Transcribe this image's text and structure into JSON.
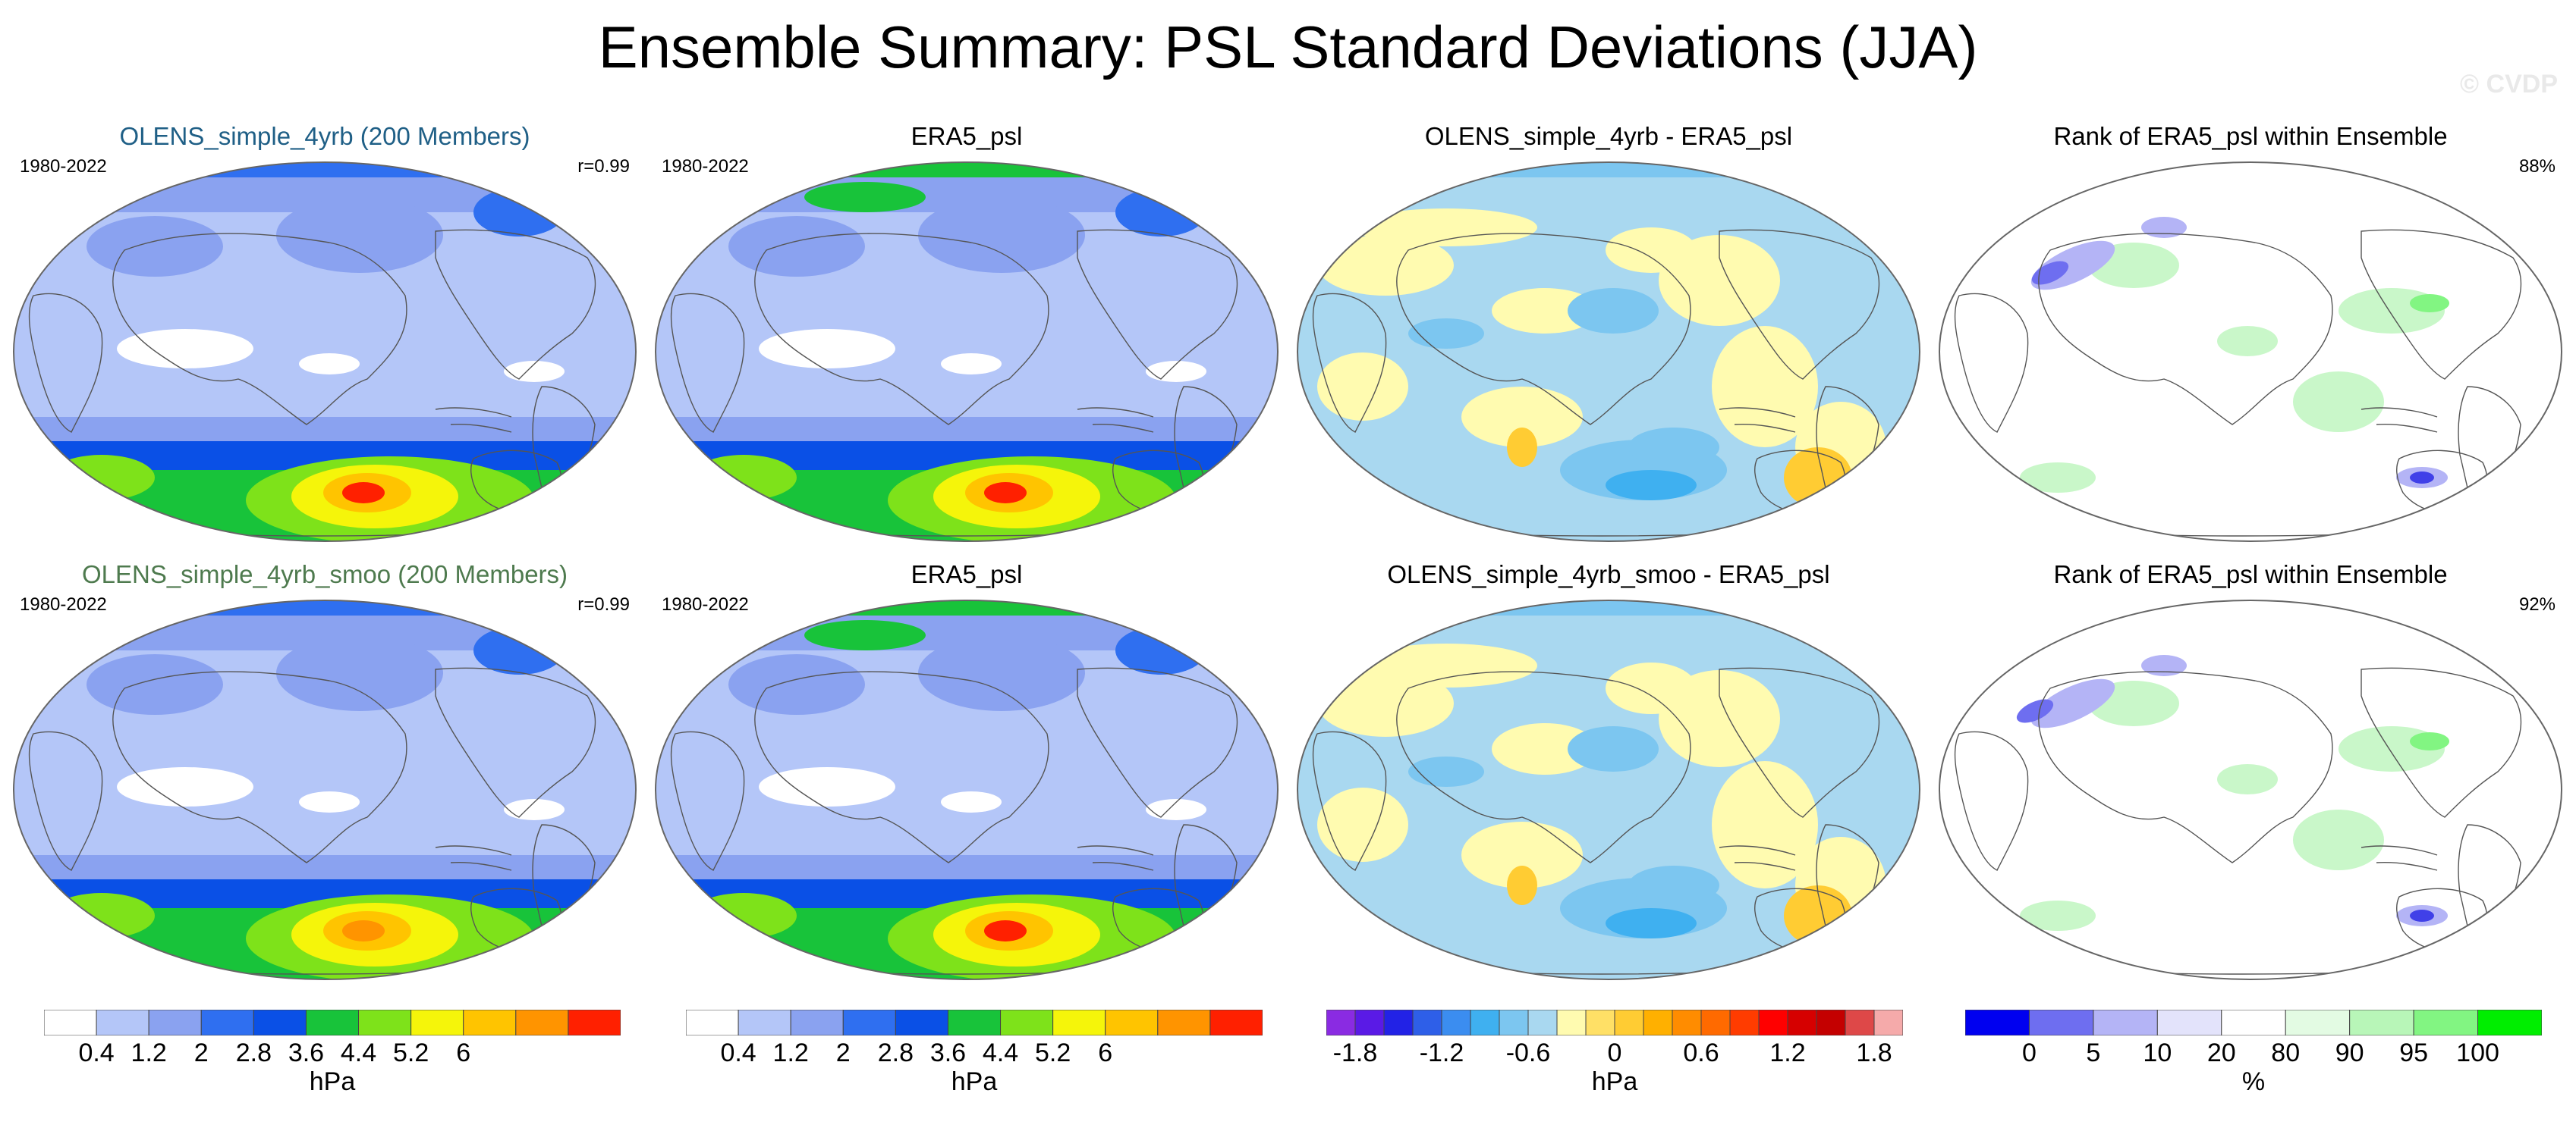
{
  "title": "Ensemble Summary: PSL Standard Deviations (JJA)",
  "watermark": "© CVDP",
  "panels": [
    {
      "title": "OLENS_simple_4yrb (200 Members)",
      "left_label": "1980-2022",
      "right_label": "r=0.99",
      "type": "std",
      "variant": 0,
      "title_color": "#1f5f86"
    },
    {
      "title": "ERA5_psl",
      "left_label": "1980-2022",
      "right_label": "",
      "type": "std",
      "variant": 1
    },
    {
      "title": "OLENS_simple_4yrb - ERA5_psl",
      "left_label": "",
      "right_label": "",
      "type": "diff",
      "variant": 0
    },
    {
      "title": "Rank of ERA5_psl within Ensemble",
      "left_label": "",
      "right_label": "88%",
      "type": "rank",
      "variant": 0
    },
    {
      "title": "OLENS_simple_4yrb_smoo (200 Members)",
      "left_label": "1980-2022",
      "right_label": "r=0.99",
      "type": "std",
      "variant": 2,
      "title_color": "#4e7a4e"
    },
    {
      "title": "ERA5_psl",
      "left_label": "1980-2022",
      "right_label": "",
      "type": "std",
      "variant": 1
    },
    {
      "title": "OLENS_simple_4yrb_smoo - ERA5_psl",
      "left_label": "",
      "right_label": "",
      "type": "diff",
      "variant": 1
    },
    {
      "title": "Rank of ERA5_psl within Ensemble",
      "left_label": "",
      "right_label": "92%",
      "type": "rank",
      "variant": 1
    }
  ],
  "colorbars": [
    {
      "name": "std",
      "colors": [
        "#ffffff",
        "#b4c6f8",
        "#8aa2f0",
        "#2f6ff0",
        "#0a50e6",
        "#18c33a",
        "#7ee21a",
        "#f5f50a",
        "#ffc400",
        "#ff9400",
        "#ff2000"
      ],
      "tick_labels": [
        "0.4",
        "1.2",
        "2",
        "2.8",
        "3.6",
        "4.4",
        "5.2",
        "6"
      ],
      "tick_positions": [
        1,
        2,
        3,
        4,
        5,
        6,
        7,
        8
      ],
      "units": "hPa"
    },
    {
      "name": "std",
      "colors": [
        "#ffffff",
        "#b4c6f8",
        "#8aa2f0",
        "#2f6ff0",
        "#0a50e6",
        "#18c33a",
        "#7ee21a",
        "#f5f50a",
        "#ffc400",
        "#ff9400",
        "#ff2000"
      ],
      "tick_labels": [
        "0.4",
        "1.2",
        "2",
        "2.8",
        "3.6",
        "4.4",
        "5.2",
        "6"
      ],
      "tick_positions": [
        1,
        2,
        3,
        4,
        5,
        6,
        7,
        8
      ],
      "units": "hPa"
    },
    {
      "name": "diff",
      "colors": [
        "#8a2be2",
        "#5a1ae6",
        "#2222e6",
        "#2e5fe8",
        "#3b8df0",
        "#3fb0f0",
        "#7cc6f0",
        "#a9d8f0",
        "#fffbb0",
        "#ffe066",
        "#ffcc33",
        "#ffb000",
        "#ff8c00",
        "#ff6a00",
        "#ff3c00",
        "#ff0000",
        "#d60000",
        "#c40000",
        "#de4848",
        "#f5aaaa"
      ],
      "tick_labels": [
        "-1.8",
        "-1.2",
        "-0.6",
        "0",
        "0.6",
        "1.2",
        "1.8"
      ],
      "tick_positions": [
        1,
        4,
        7,
        10,
        13,
        16,
        19
      ],
      "units": "hPa"
    },
    {
      "name": "rank",
      "colors": [
        "#0000f0",
        "#6e6ef0",
        "#b4b4f6",
        "#e3e3fb",
        "#ffffff",
        "#e3fbe3",
        "#b8f6b8",
        "#82f582",
        "#00ee00"
      ],
      "tick_labels": [
        "0",
        "5",
        "10",
        "20",
        "80",
        "90",
        "95",
        "100"
      ],
      "tick_positions": [
        1,
        2,
        3,
        4,
        5,
        6,
        7,
        8
      ],
      "units": "%"
    }
  ]
}
